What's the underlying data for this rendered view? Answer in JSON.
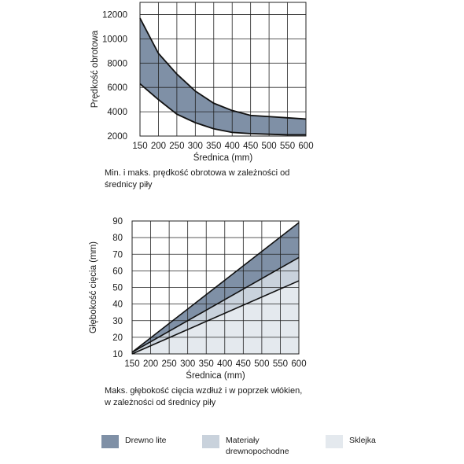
{
  "colors": {
    "solid_wood": "#7f90a6",
    "wood_based": "#c9d2dc",
    "plywood": "#e4e9ee",
    "line": "#111111",
    "grid": "#222222"
  },
  "chart_data": [
    {
      "type": "area",
      "title": "",
      "xlabel": "Średnica (mm)",
      "ylabel": "Prędkość obrotowa",
      "x": [
        150,
        200,
        250,
        300,
        350,
        400,
        450,
        500,
        550,
        600
      ],
      "xlim": [
        150,
        600
      ],
      "ylim": [
        2000,
        13000
      ],
      "x_ticks": [
        "150",
        "200",
        "250",
        "300",
        "350",
        "400",
        "450",
        "500",
        "550",
        "600"
      ],
      "y_ticks": [
        "2000",
        "4000",
        "6000",
        "8000",
        "10000",
        "12000"
      ],
      "grid": true,
      "series": [
        {
          "role": "max",
          "values": [
            11700,
            8800,
            7100,
            5700,
            4700,
            4100,
            3700,
            3600,
            3500,
            3400
          ]
        },
        {
          "role": "min",
          "values": [
            6300,
            5000,
            3800,
            3100,
            2600,
            2300,
            2200,
            2150,
            2100,
            2100
          ]
        }
      ],
      "caption": "Min. i maks. prędkość obrotowa w zależności od średnicy piły"
    },
    {
      "type": "area",
      "title": "",
      "xlabel": "Średnica (mm)",
      "ylabel": "Głębokość cięcia (mm)",
      "x": [
        150,
        600
      ],
      "xlim": [
        150,
        600
      ],
      "ylim": [
        10,
        90
      ],
      "x_ticks": [
        "150",
        "200",
        "250",
        "300",
        "350",
        "400",
        "450",
        "500",
        "550",
        "600"
      ],
      "y_ticks": [
        "10",
        "20",
        "30",
        "40",
        "50",
        "60",
        "70",
        "80",
        "90"
      ],
      "grid": true,
      "series": [
        {
          "role": "upper",
          "values": [
            11,
            89
          ]
        },
        {
          "role": "middle",
          "values": [
            11,
            68
          ]
        },
        {
          "role": "lower",
          "values": [
            10,
            54
          ]
        }
      ],
      "caption": "Maks. głębokość cięcia wzdłuż i w poprzek włókien, w zależności od średnicy piły"
    }
  ],
  "captions": {
    "chart1_line1": "Min. i maks. prędkość obrotowa w zależności od",
    "chart1_line2": "średnicy piły",
    "chart2_line1": "Maks. głębokość cięcia wzdłuż i w poprzek włókien,",
    "chart2_line2": "w zależności od średnicy piły"
  },
  "legend": [
    {
      "label_line1": "Drewno lite",
      "label_line2": "",
      "color": "#7f90a6"
    },
    {
      "label_line1": "Materiały",
      "label_line2": "drewnopochodne",
      "color": "#c9d2dc"
    },
    {
      "label_line1": "Sklejka",
      "label_line2": "",
      "color": "#e4e9ee"
    }
  ]
}
